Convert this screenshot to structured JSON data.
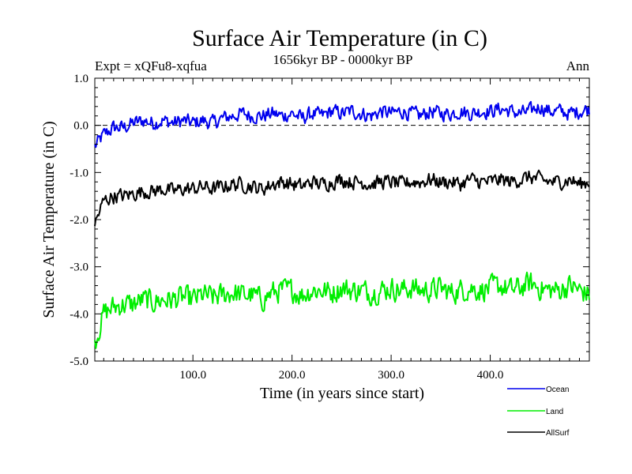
{
  "chart_data": {
    "type": "line",
    "title": "Surface Air Temperature (in C)",
    "subtitle": "1656kyr BP - 0000kyr BP",
    "experiment_label": "Expt = xQFu8-xqfua",
    "period_label": "Ann",
    "xlabel": "Time (in years since start)",
    "ylabel": "Surface Air Temperature (in C)",
    "xlim": [
      1,
      500
    ],
    "ylim": [
      -5.0,
      1.0
    ],
    "x_ticks": [
      100,
      200,
      300,
      400
    ],
    "x_tick_labels": [
      "100.0",
      "200.0",
      "300.0",
      "400.0"
    ],
    "y_ticks": [
      -5,
      -4,
      -3,
      -2,
      -1,
      0,
      1
    ],
    "y_tick_labels": [
      "-5.0",
      "-4.0",
      "-3.0",
      "-2.0",
      "-1.0",
      "0.0",
      "1.0"
    ],
    "reference_line": 0.0,
    "legend_position": "bottom-right",
    "series": [
      {
        "name": "Ocean",
        "color": "#0000ee",
        "x": [
          1,
          10,
          20,
          30,
          40,
          50,
          60,
          70,
          80,
          90,
          100,
          110,
          120,
          130,
          140,
          150,
          160,
          170,
          180,
          190,
          200,
          210,
          220,
          230,
          240,
          250,
          260,
          270,
          280,
          290,
          300,
          310,
          320,
          330,
          340,
          350,
          360,
          370,
          380,
          390,
          400,
          410,
          420,
          430,
          440,
          450,
          460,
          470,
          480,
          490,
          500
        ],
        "values": [
          -0.45,
          -0.2,
          -0.05,
          -0.05,
          0.05,
          0.1,
          0.05,
          0.1,
          0.05,
          0.1,
          0.05,
          0.1,
          0.05,
          0.15,
          0.2,
          0.25,
          0.2,
          0.2,
          0.25,
          0.2,
          0.25,
          0.15,
          0.25,
          0.2,
          0.3,
          0.25,
          0.3,
          0.25,
          0.2,
          0.3,
          0.25,
          0.3,
          0.25,
          0.2,
          0.3,
          0.25,
          0.25,
          0.3,
          0.25,
          0.3,
          0.3,
          0.35,
          0.3,
          0.25,
          0.3,
          0.4,
          0.3,
          0.3,
          0.25,
          0.3,
          0.35
        ]
      },
      {
        "name": "Land",
        "color": "#00ee00",
        "x": [
          1,
          10,
          20,
          30,
          40,
          50,
          60,
          70,
          80,
          90,
          100,
          110,
          120,
          130,
          140,
          150,
          160,
          170,
          180,
          190,
          200,
          210,
          220,
          230,
          240,
          250,
          260,
          270,
          280,
          290,
          300,
          310,
          320,
          330,
          340,
          350,
          360,
          370,
          380,
          390,
          400,
          410,
          420,
          430,
          440,
          450,
          460,
          470,
          480,
          490,
          500
        ],
        "values": [
          -4.6,
          -4.0,
          -3.85,
          -3.8,
          -3.8,
          -3.7,
          -3.75,
          -3.7,
          -3.7,
          -3.65,
          -3.7,
          -3.6,
          -3.65,
          -3.6,
          -3.55,
          -3.6,
          -3.6,
          -3.7,
          -3.55,
          -3.5,
          -3.5,
          -3.6,
          -3.5,
          -3.5,
          -3.55,
          -3.45,
          -3.5,
          -3.5,
          -3.55,
          -3.5,
          -3.45,
          -3.5,
          -3.45,
          -3.5,
          -3.5,
          -3.45,
          -3.55,
          -3.5,
          -3.45,
          -3.5,
          -3.45,
          -3.4,
          -3.5,
          -3.45,
          -3.35,
          -3.45,
          -3.5,
          -3.5,
          -3.4,
          -3.5,
          -3.6
        ]
      },
      {
        "name": "AllSurf",
        "color": "#000000",
        "x": [
          1,
          10,
          20,
          30,
          40,
          50,
          60,
          70,
          80,
          90,
          100,
          110,
          120,
          130,
          140,
          150,
          160,
          170,
          180,
          190,
          200,
          210,
          220,
          230,
          240,
          250,
          260,
          270,
          280,
          290,
          300,
          310,
          320,
          330,
          340,
          350,
          360,
          370,
          380,
          390,
          400,
          410,
          420,
          430,
          440,
          450,
          460,
          470,
          480,
          490,
          500
        ],
        "values": [
          -2.1,
          -1.6,
          -1.5,
          -1.5,
          -1.45,
          -1.4,
          -1.4,
          -1.35,
          -1.4,
          -1.35,
          -1.35,
          -1.3,
          -1.35,
          -1.3,
          -1.25,
          -1.25,
          -1.3,
          -1.35,
          -1.25,
          -1.2,
          -1.25,
          -1.3,
          -1.2,
          -1.25,
          -1.2,
          -1.15,
          -1.2,
          -1.2,
          -1.25,
          -1.2,
          -1.2,
          -1.25,
          -1.2,
          -1.2,
          -1.15,
          -1.2,
          -1.2,
          -1.25,
          -1.15,
          -1.2,
          -1.2,
          -1.15,
          -1.2,
          -1.15,
          -1.1,
          -1.15,
          -1.2,
          -1.2,
          -1.15,
          -1.25,
          -1.2
        ]
      }
    ]
  }
}
